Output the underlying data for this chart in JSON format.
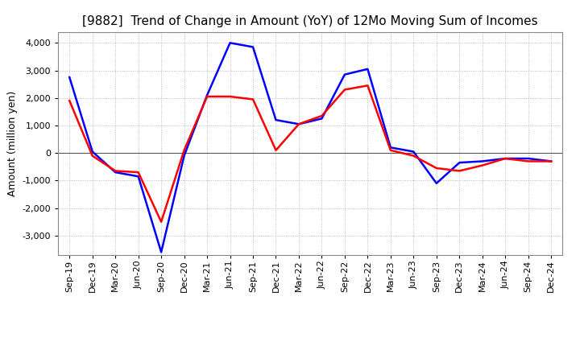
{
  "title": "[9882]  Trend of Change in Amount (YoY) of 12Mo Moving Sum of Incomes",
  "ylabel": "Amount (million yen)",
  "x_labels": [
    "Sep-19",
    "Dec-19",
    "Mar-20",
    "Jun-20",
    "Sep-20",
    "Dec-20",
    "Mar-21",
    "Jun-21",
    "Sep-21",
    "Dec-21",
    "Mar-22",
    "Jun-22",
    "Sep-22",
    "Dec-22",
    "Mar-23",
    "Jun-23",
    "Sep-23",
    "Dec-23",
    "Mar-24",
    "Jun-24",
    "Sep-24",
    "Dec-24"
  ],
  "ordinary_income": [
    2750,
    50,
    -700,
    -850,
    -3600,
    -100,
    2100,
    4000,
    3850,
    1200,
    1050,
    1250,
    2850,
    3050,
    200,
    50,
    -1100,
    -350,
    -300,
    -200,
    -200,
    -300
  ],
  "net_income": [
    1900,
    -100,
    -650,
    -700,
    -2500,
    100,
    2050,
    2050,
    1950,
    100,
    1050,
    1350,
    2300,
    2450,
    100,
    -100,
    -550,
    -650,
    -450,
    -200,
    -300,
    -300
  ],
  "ordinary_income_color": "#0000FF",
  "net_income_color": "#FF0000",
  "ylim": [
    -3700,
    4400
  ],
  "yticks": [
    -3000,
    -2000,
    -1000,
    0,
    1000,
    2000,
    3000,
    4000
  ],
  "background_color": "#FFFFFF",
  "grid_color": "#AAAAAA",
  "title_fontsize": 11,
  "axis_fontsize": 9,
  "tick_fontsize": 8,
  "legend_fontsize": 9,
  "linewidth": 1.8
}
